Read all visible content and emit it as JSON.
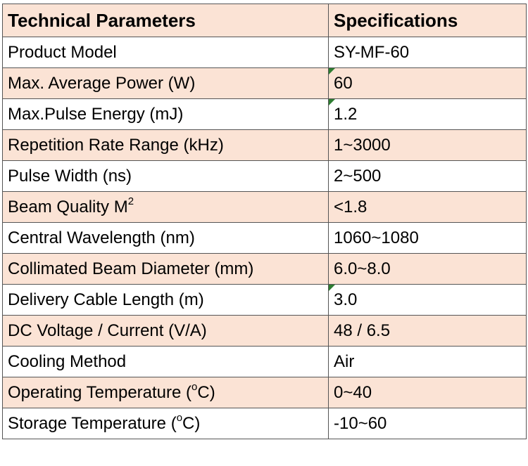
{
  "table": {
    "header": {
      "param": "Technical Parameters",
      "spec": "Specifications"
    },
    "rows": [
      {
        "param": "Product Model",
        "spec": "SY-MF-60"
      },
      {
        "param": "Max. Average Power (W)",
        "spec": "60"
      },
      {
        "param": "Max.Pulse Energy (mJ)",
        "spec": "1.2"
      },
      {
        "param": "Repetition Rate Range (kHz)",
        "spec": "1~3000"
      },
      {
        "param": "Pulse Width (ns)",
        "spec": "2~500"
      },
      {
        "param": "Beam Quality M",
        "param_sup": "2",
        "spec": "<1.8"
      },
      {
        "param": "Central Wavelength (nm)",
        "spec": "1060~1080"
      },
      {
        "param": "Collimated Beam Diameter (mm)",
        "spec": "6.0~8.0"
      },
      {
        "param": "Delivery Cable Length (m)",
        "spec": "3.0"
      },
      {
        "param": "DC Voltage / Current (V/A)",
        "spec": "48 / 6.5"
      },
      {
        "param": "Cooling Method",
        "spec": "Air"
      },
      {
        "param": "Operating Temperature (",
        "param_sup": "o",
        "param_suffix": "C)",
        "spec": "0~40"
      },
      {
        "param": "Storage Temperature (",
        "param_sup": "o",
        "param_suffix": "C)",
        "spec": "-10~60"
      }
    ]
  },
  "colors": {
    "shaded_row": "#fbe3d5",
    "plain_row": "#ffffff",
    "border": "#555555",
    "cell_marker": "#2e7d32"
  }
}
